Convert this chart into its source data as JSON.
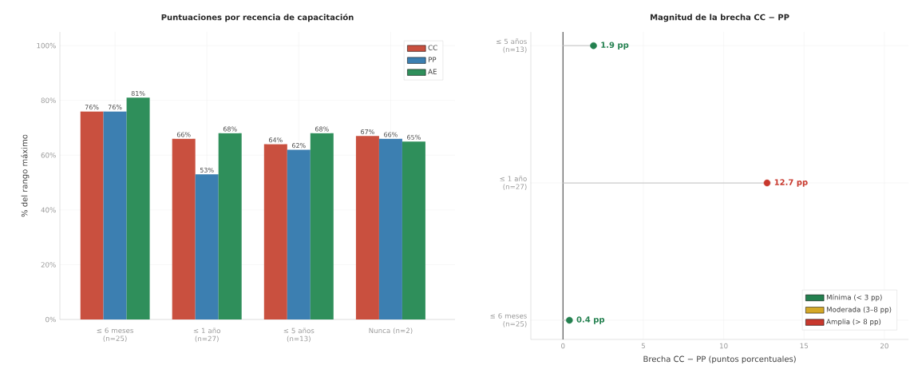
{
  "chart_data": [
    {
      "type": "bar",
      "title": "Puntuaciones por recencia de capacitación",
      "ylabel": "% del rango máximo",
      "categories": [
        "≤ 6 meses (n=25)",
        "≤ 1 año (n=27)",
        "≤ 5 años (n=13)",
        "Nunca (n=2)"
      ],
      "series": [
        {
          "name": "CC",
          "color": "#c9503f",
          "values": [
            76,
            66,
            64,
            67
          ],
          "value_labels": [
            "76%",
            "66%",
            "64%",
            "67%"
          ]
        },
        {
          "name": "PP",
          "color": "#3c7fb1",
          "values": [
            76,
            53,
            62,
            66
          ],
          "value_labels": [
            "76%",
            "53%",
            "62%",
            "66%"
          ]
        },
        {
          "name": "AE",
          "color": "#2f8f5b",
          "values": [
            81,
            68,
            68,
            65
          ],
          "value_labels": [
            "81%",
            "68%",
            "68%",
            "65%"
          ]
        }
      ],
      "ylim": [
        0,
        105
      ],
      "yticks": [
        {
          "value": 0,
          "label": "0%"
        },
        {
          "value": 20,
          "label": "20%"
        },
        {
          "value": 40,
          "label": "40%"
        },
        {
          "value": 60,
          "label": "60%"
        },
        {
          "value": 80,
          "label": "80%"
        },
        {
          "value": 100,
          "label": "100%"
        }
      ],
      "grid": true,
      "legend": "top right"
    },
    {
      "type": "lollipop",
      "orientation": "horizontal",
      "title": "Magnitud de la brecha CC − PP",
      "xlabel": "Brecha  CC − PP  (puntos porcentuales)",
      "categories": [
        "≤ 5 años (n=13)",
        "≤ 1 año (n=27)",
        "≤ 6 meses (n=25)"
      ],
      "series": [
        {
          "name": "Mínima (< 3 pp)",
          "color": "#23804f",
          "values": [
            1.9,
            null,
            0.4
          ],
          "value_labels": [
            "1.9 pp",
            null,
            "0.4 pp"
          ]
        },
        {
          "name": "Moderada (3–8 pp)",
          "color": "#d4a828",
          "values": [
            null,
            null,
            null
          ]
        },
        {
          "name": "Amplia (> 8 pp)",
          "color": "#c8382d",
          "values": [
            null,
            12.7,
            null
          ],
          "value_labels": [
            null,
            "12.7 pp",
            null
          ]
        }
      ],
      "xlim": [
        -2,
        21.5
      ],
      "xticks": [
        0,
        5,
        10,
        15,
        20
      ],
      "ref_lines": [
        {
          "axis": "x",
          "value": 0,
          "color": "#444444"
        }
      ],
      "grid": true,
      "legend": "bottom right"
    }
  ]
}
